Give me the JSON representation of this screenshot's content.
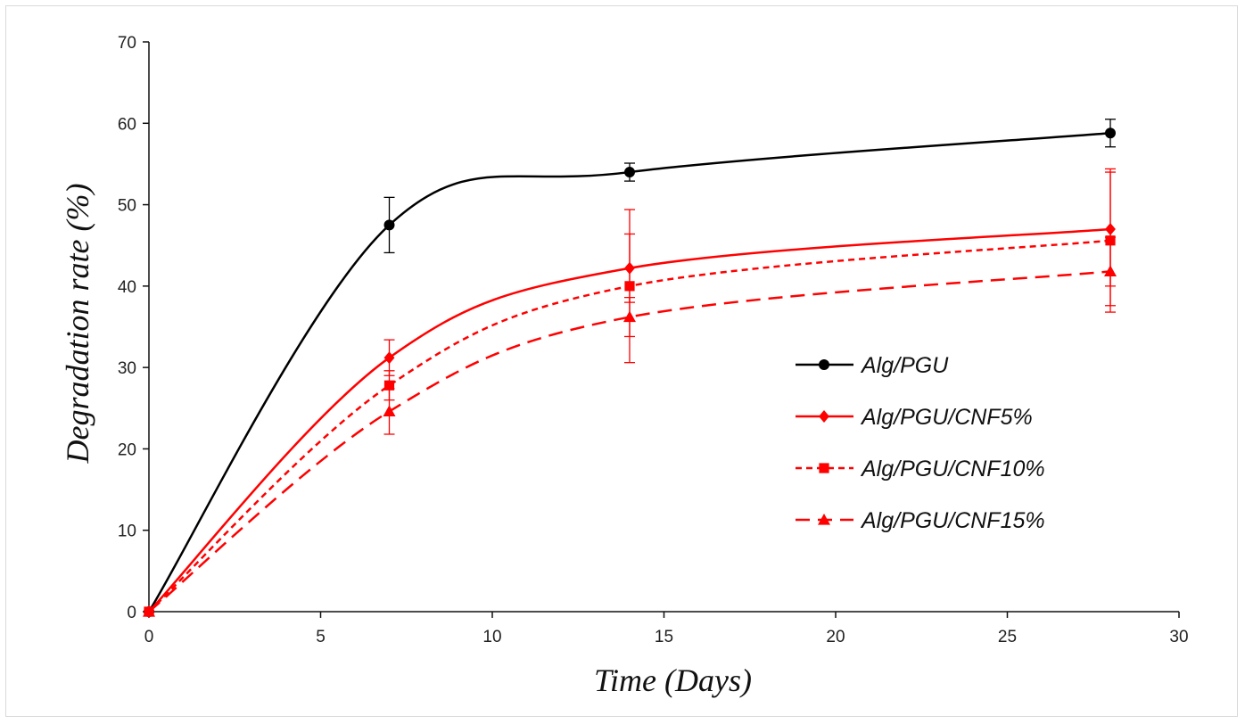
{
  "chart_data": {
    "type": "line",
    "title": "",
    "xlabel": "Time (Days)",
    "ylabel": "Degradation rate (%)",
    "xlim": [
      0,
      30
    ],
    "ylim": [
      0,
      70
    ],
    "xticks": [
      0,
      5,
      10,
      15,
      20,
      25,
      30
    ],
    "yticks": [
      0,
      10,
      20,
      30,
      40,
      50,
      60,
      70
    ],
    "grid": false,
    "legend_position": "center-right",
    "x": [
      0,
      7,
      14,
      28
    ],
    "series": [
      {
        "name": "Alg/PGU",
        "values": [
          0,
          47.5,
          54.0,
          58.8
        ],
        "errors": [
          0,
          3.4,
          1.1,
          1.7
        ],
        "color": "#000000",
        "marker": "circle",
        "line_style": "solid"
      },
      {
        "name": "Alg/PGU/CNF5%",
        "values": [
          0,
          31.2,
          42.2,
          47.0
        ],
        "errors": [
          0,
          2.2,
          4.2,
          7.0
        ],
        "color": "#ff0000",
        "marker": "diamond",
        "line_style": "solid"
      },
      {
        "name": "Alg/PGU/CNF10%",
        "values": [
          0,
          27.8,
          40.0,
          45.6
        ],
        "errors": [
          0,
          1.8,
          9.4,
          8.8
        ],
        "color": "#ff0000",
        "marker": "square",
        "line_style": "short-dash"
      },
      {
        "name": "Alg/PGU/CNF15%",
        "values": [
          0,
          24.6,
          36.2,
          41.8
        ],
        "errors": [
          0,
          2.8,
          2.4,
          4.2
        ],
        "color": "#ff0000",
        "marker": "triangle",
        "line_style": "long-dash"
      }
    ]
  }
}
